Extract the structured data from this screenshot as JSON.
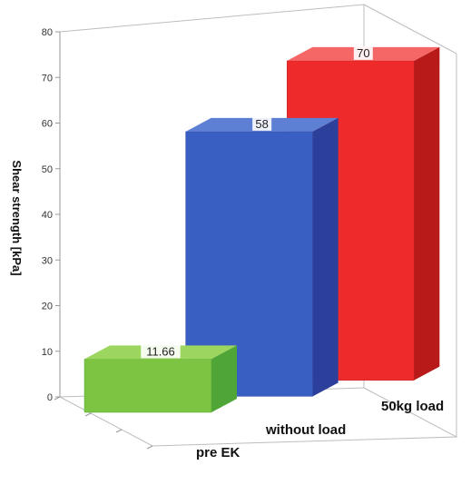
{
  "chart_data": {
    "type": "bar",
    "categories": [
      "pre EK",
      "without load",
      "50kg load"
    ],
    "values": [
      11.66,
      58,
      70
    ],
    "data_labels": [
      "11.66",
      "58",
      "70"
    ],
    "ylabel": "Shear strength [kPa]",
    "ylim": [
      0,
      80
    ],
    "yticks": [
      0,
      10,
      20,
      30,
      40,
      50,
      60,
      70,
      80
    ],
    "grid": false,
    "legend": "none",
    "colors": {
      "pre EK": {
        "front": "#7dc442",
        "side": "#4fa637",
        "top": "#9cd65e"
      },
      "without load": {
        "front": "#3a5fc2",
        "side": "#2c3f9a",
        "top": "#5d7fd4"
      },
      "50kg load": {
        "front": "#ee2a2a",
        "side": "#b81a1a",
        "top": "#f56666"
      }
    }
  }
}
